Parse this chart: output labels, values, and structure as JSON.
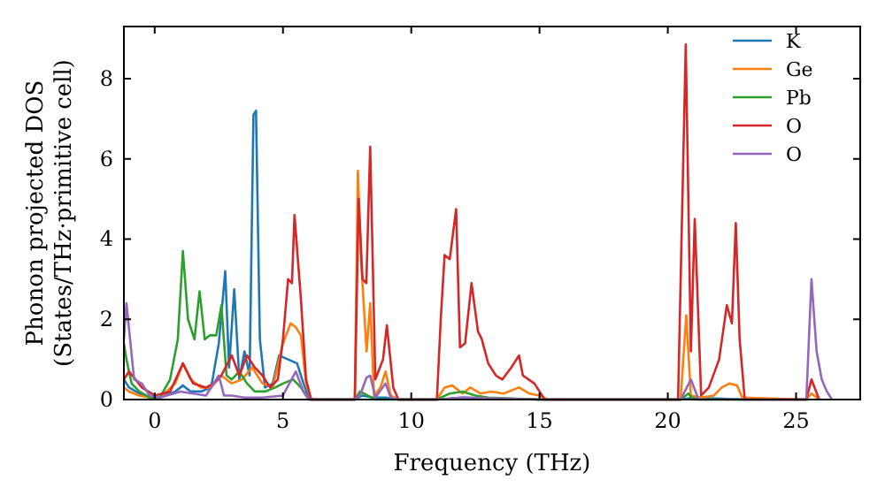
{
  "chart_data": {
    "type": "line",
    "xlabel": "Frequency (THz)",
    "ylabel": "Phonon projected DOS\n(States/THz·primitive cell)",
    "xlim": [
      -1.2,
      27.5
    ],
    "ylim": [
      0,
      9.3
    ],
    "xticks": [
      0,
      5,
      10,
      15,
      20,
      25
    ],
    "yticks": [
      0,
      2,
      4,
      6,
      8
    ],
    "grid": false,
    "legend": "top right",
    "marker": "none",
    "line_style": "solid",
    "series": [
      {
        "name": "K",
        "color": "#1f77b4",
        "x": [
          -1.2,
          -1.0,
          -0.6,
          -0.2,
          0.2,
          0.8,
          1.1,
          1.4,
          1.8,
          2.2,
          2.5,
          2.75,
          2.9,
          3.1,
          3.3,
          3.5,
          3.7,
          3.85,
          3.95,
          4.1,
          4.3,
          4.6,
          4.85,
          5.2,
          5.55,
          5.8,
          6.0,
          6.2,
          7.8,
          8.1,
          8.5,
          9.0,
          9.5,
          11.0,
          12.0,
          15.0,
          20.5,
          21.0,
          23.0,
          25.5
        ],
        "values": [
          0.5,
          0.3,
          0.15,
          0.05,
          0.05,
          0.2,
          0.35,
          0.2,
          0.2,
          0.3,
          1.4,
          3.2,
          0.8,
          2.75,
          0.5,
          1.2,
          0.6,
          7.1,
          7.2,
          1.5,
          0.3,
          0.4,
          1.1,
          1.0,
          0.9,
          0.4,
          0.05,
          0,
          0,
          0.1,
          0.05,
          0.05,
          0,
          0,
          0.05,
          0,
          0,
          0.05,
          0,
          0
        ]
      },
      {
        "name": "Ge",
        "color": "#ff7f0e",
        "x": [
          -1.2,
          -1.0,
          -0.6,
          -0.2,
          0.2,
          0.8,
          1.1,
          1.4,
          1.8,
          2.2,
          2.6,
          3.0,
          3.4,
          3.8,
          4.2,
          4.6,
          5.0,
          5.3,
          5.5,
          5.7,
          5.9,
          6.1,
          7.8,
          7.92,
          8.05,
          8.26,
          8.4,
          8.55,
          8.8,
          9.0,
          9.2,
          9.5,
          11.0,
          11.3,
          11.6,
          12.0,
          12.3,
          12.7,
          13.1,
          13.6,
          14.2,
          14.6,
          15.0,
          15.3,
          20.5,
          20.72,
          20.9,
          21.3,
          21.8,
          22.1,
          22.4,
          22.7,
          22.9,
          25.4,
          25.6,
          25.9
        ],
        "values": [
          0.3,
          0.2,
          0.1,
          0.05,
          0.05,
          0.4,
          0.9,
          0.5,
          0.3,
          0.3,
          0.6,
          0.4,
          0.5,
          0.8,
          0.4,
          0.3,
          1.4,
          1.9,
          1.8,
          1.6,
          0.4,
          0,
          0,
          5.7,
          3.4,
          1.2,
          2.4,
          0.1,
          0.3,
          0.7,
          0.1,
          0,
          0,
          0.3,
          0.35,
          0.15,
          0.3,
          0.15,
          0.2,
          0.15,
          0.3,
          0.15,
          0.1,
          0,
          0,
          2.1,
          0.1,
          0.05,
          0.1,
          0.3,
          0.4,
          0.35,
          0.05,
          0,
          0.15,
          0
        ]
      },
      {
        "name": "Pb",
        "color": "#2ca02c",
        "x": [
          -1.2,
          -1.1,
          -0.9,
          -0.6,
          -0.2,
          0.2,
          0.6,
          0.9,
          1.1,
          1.3,
          1.55,
          1.75,
          1.95,
          2.15,
          2.4,
          2.6,
          2.8,
          3.0,
          3.3,
          3.6,
          3.9,
          4.3,
          4.7,
          5.0,
          5.4,
          5.7,
          6.0,
          7.8,
          8.0,
          8.3,
          8.6,
          9.5,
          11.0,
          11.5,
          12.0,
          12.5,
          13.0,
          15.0,
          20.5,
          20.8,
          21.0,
          23.0
        ],
        "values": [
          1.4,
          1.0,
          0.4,
          0.2,
          0.05,
          0.05,
          0.5,
          1.5,
          3.7,
          2.0,
          1.5,
          2.7,
          1.5,
          1.6,
          1.6,
          2.35,
          0.6,
          0.5,
          0.7,
          0.4,
          0.2,
          0.2,
          0.3,
          0.4,
          0.5,
          0.3,
          0,
          0,
          0.2,
          0.1,
          0,
          0,
          0,
          0.15,
          0.2,
          0.1,
          0.05,
          0,
          0,
          0.15,
          0,
          0
        ]
      },
      {
        "name": "O",
        "color": "#d62728",
        "x": [
          -1.2,
          -1.0,
          -0.5,
          0.0,
          0.6,
          1.1,
          1.5,
          2.0,
          2.3,
          2.6,
          3.0,
          3.3,
          3.6,
          3.9,
          4.2,
          4.5,
          4.8,
          5.0,
          5.2,
          5.35,
          5.45,
          5.7,
          5.9,
          6.1,
          7.8,
          7.95,
          8.1,
          8.25,
          8.4,
          8.6,
          8.9,
          9.05,
          9.3,
          9.5,
          11.0,
          11.15,
          11.3,
          11.5,
          11.75,
          11.9,
          12.1,
          12.35,
          12.6,
          12.75,
          13.0,
          13.3,
          13.55,
          13.9,
          14.2,
          14.35,
          14.8,
          15.0,
          15.2,
          20.4,
          20.7,
          20.9,
          21.05,
          21.3,
          21.6,
          22.0,
          22.3,
          22.5,
          22.65,
          22.8,
          23.0,
          25.4,
          25.6,
          25.9
        ],
        "values": [
          0.5,
          0.7,
          0.3,
          0.1,
          0.2,
          0.9,
          0.4,
          0.3,
          0.4,
          0.6,
          1.1,
          0.6,
          1.1,
          0.8,
          0.6,
          0.3,
          0.5,
          1.5,
          3.0,
          2.9,
          4.6,
          2.5,
          0.5,
          0,
          0,
          5.0,
          3.0,
          2.9,
          6.3,
          0.5,
          1.0,
          1.85,
          0.3,
          0,
          0,
          2.0,
          3.6,
          3.5,
          4.75,
          1.3,
          1.4,
          2.9,
          1.7,
          1.5,
          0.9,
          0.6,
          0.5,
          0.8,
          1.1,
          0.6,
          0.4,
          0.2,
          0,
          0,
          8.85,
          1.2,
          4.5,
          0.1,
          0.3,
          1.0,
          2.35,
          1.9,
          4.4,
          1.5,
          0,
          0,
          0.5,
          0
        ]
      },
      {
        "name": "O",
        "color": "#9467bd",
        "x": [
          -1.2,
          -1.1,
          -0.8,
          -0.5,
          -0.2,
          0.2,
          1.0,
          1.5,
          2.0,
          2.5,
          2.7,
          3.0,
          3.5,
          4.2,
          5.0,
          5.5,
          5.8,
          6.0,
          7.8,
          8.0,
          8.26,
          8.4,
          8.6,
          9.0,
          9.2,
          9.5,
          11.0,
          12.0,
          15.0,
          20.5,
          20.9,
          21.2,
          23.0,
          25.4,
          25.6,
          25.8,
          26.0,
          26.2,
          26.4
        ],
        "values": [
          1.5,
          2.4,
          0.5,
          0.4,
          0.1,
          0.05,
          0.2,
          0.15,
          0.1,
          0.6,
          0.1,
          0.1,
          0.05,
          0.05,
          0.1,
          0.7,
          0.2,
          0,
          0,
          0.1,
          0.55,
          0.6,
          0.05,
          0.4,
          0.05,
          0,
          0,
          0.05,
          0,
          0,
          0.5,
          0,
          0,
          0,
          3.0,
          1.2,
          0.5,
          0.2,
          0
        ]
      }
    ]
  }
}
